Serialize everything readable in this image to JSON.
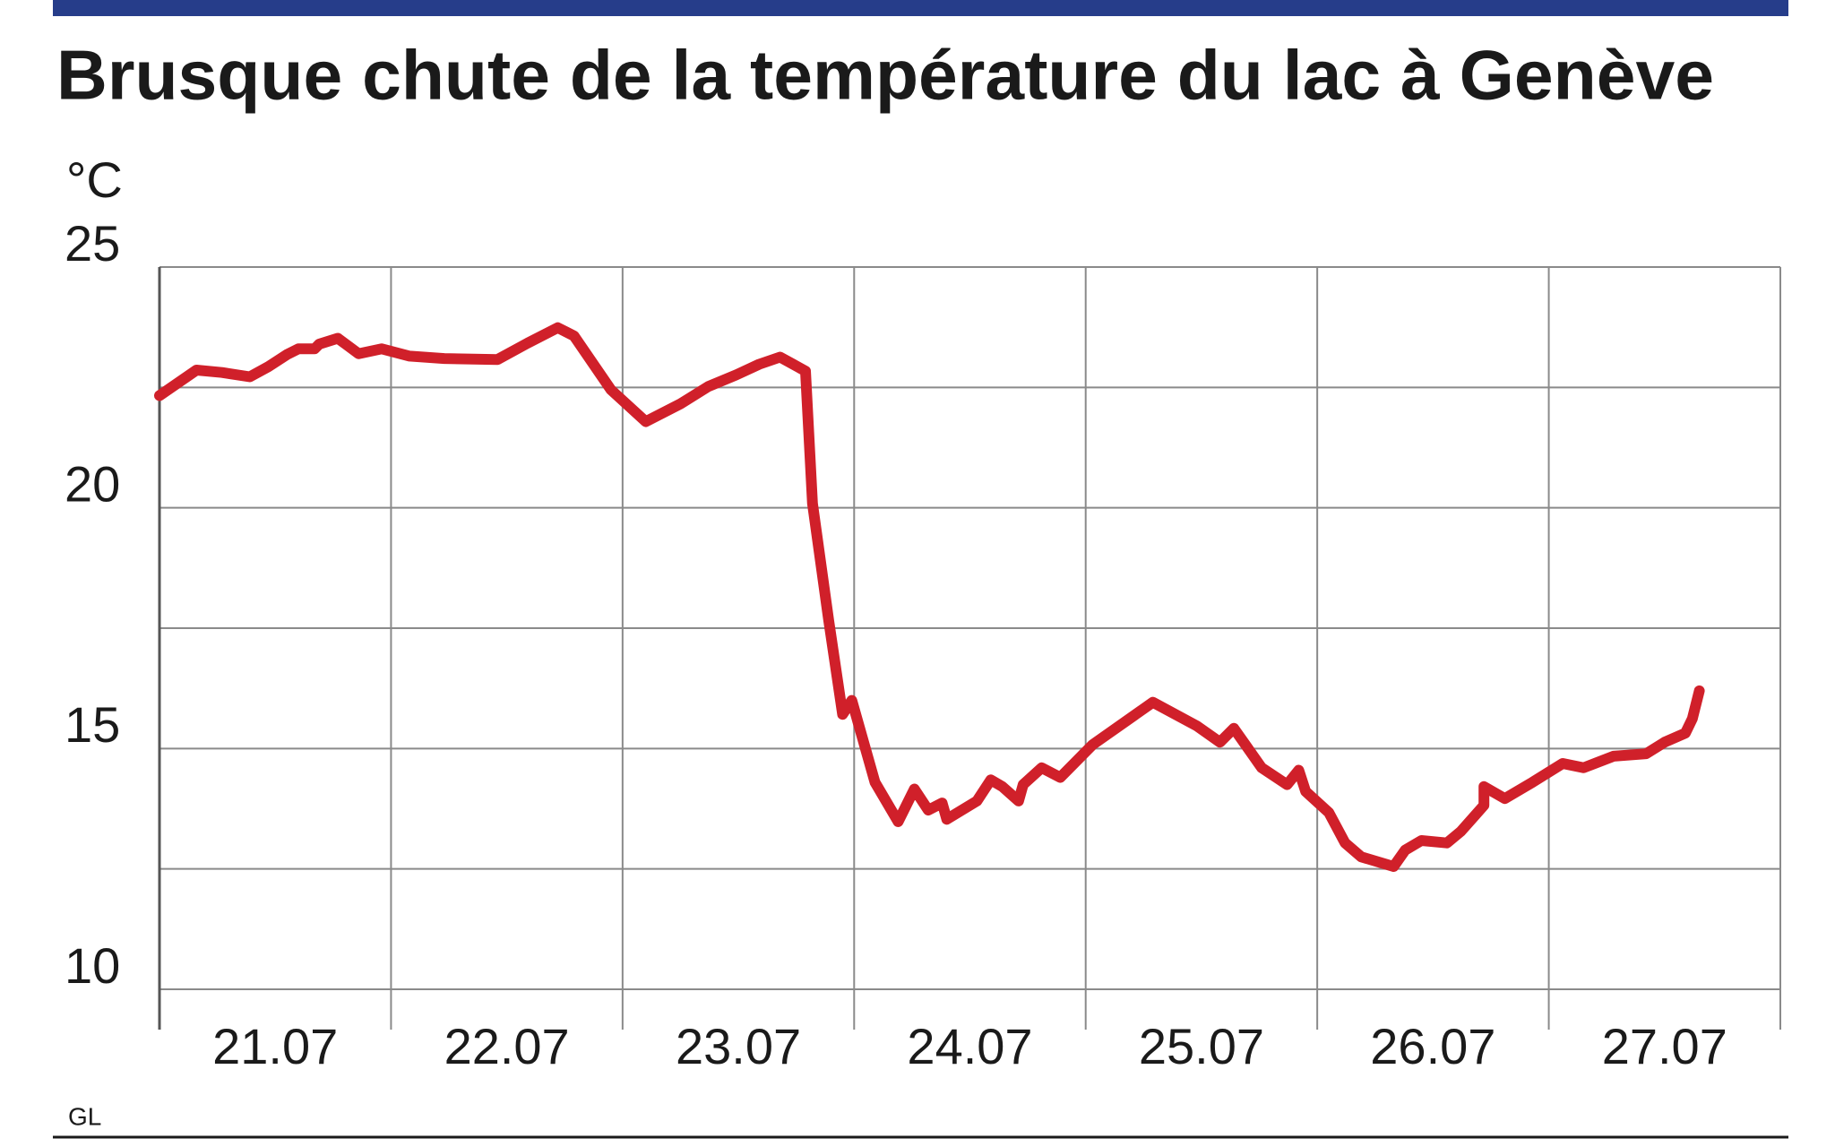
{
  "chart_data": {
    "type": "line",
    "title": "Brusque chute de la température du lac à Genève",
    "y_label": "°C",
    "source": "GL",
    "categories": [
      "21.07",
      "22.07",
      "23.07",
      "24.07",
      "25.07",
      "26.07",
      "27.07"
    ],
    "x": [
      0,
      0.16,
      0.27,
      0.39,
      0.47,
      0.55,
      0.6,
      0.67,
      0.69,
      0.77,
      0.86,
      0.96,
      1.08,
      1.23,
      1.46,
      1.59,
      1.72,
      1.79,
      1.95,
      2.1,
      2.25,
      2.37,
      2.49,
      2.59,
      2.68,
      2.79,
      2.82,
      2.89,
      2.95,
      2.99,
      3.09,
      3.19,
      3.26,
      3.32,
      3.38,
      3.4,
      3.53,
      3.59,
      3.64,
      3.71,
      3.73,
      3.81,
      3.89,
      4.03,
      4.29,
      4.48,
      4.58,
      4.64,
      4.76,
      4.87,
      4.92,
      4.95,
      5.05,
      5.12,
      5.19,
      5.33,
      5.38,
      5.45,
      5.56,
      5.62,
      5.72,
      5.72,
      5.81,
      5.93,
      6.06,
      6.15,
      6.28,
      6.42,
      6.5,
      6.59,
      6.62,
      6.65
    ],
    "values": [
      22.33,
      22.86,
      22.81,
      22.72,
      22.93,
      23.18,
      23.3,
      23.3,
      23.4,
      23.52,
      23.2,
      23.3,
      23.15,
      23.1,
      23.08,
      23.42,
      23.74,
      23.57,
      22.45,
      21.79,
      22.16,
      22.52,
      22.76,
      22.98,
      23.13,
      22.84,
      20.09,
      17.66,
      15.71,
      16.0,
      14.3,
      13.48,
      14.16,
      13.72,
      13.87,
      13.53,
      13.91,
      14.35,
      14.21,
      13.91,
      14.25,
      14.6,
      14.4,
      15.08,
      15.96,
      15.47,
      15.13,
      15.42,
      14.6,
      14.25,
      14.55,
      14.11,
      13.67,
      13.04,
      12.75,
      12.55,
      12.89,
      13.09,
      13.04,
      13.28,
      13.82,
      14.21,
      13.96,
      14.3,
      14.69,
      14.6,
      14.84,
      14.89,
      15.13,
      15.32,
      15.62,
      16.2
    ],
    "color": "#d0202a",
    "xlim": [
      0,
      7
    ],
    "ylim": [
      10,
      25
    ],
    "yticks": [
      10,
      15,
      20,
      25
    ],
    "grid_lines": [
      10,
      12.5,
      15,
      17.5,
      20,
      22.5,
      25
    ],
    "grid": true
  }
}
